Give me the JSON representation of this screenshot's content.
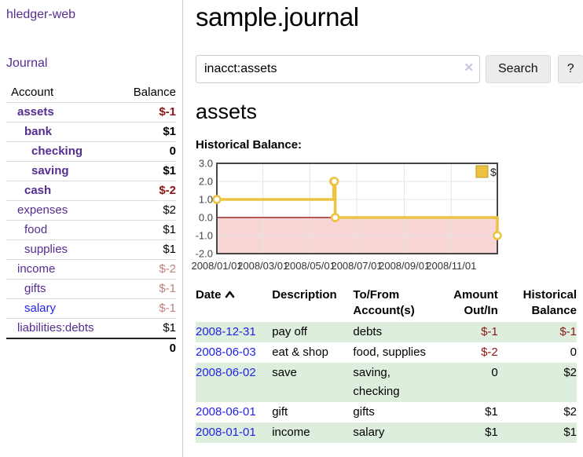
{
  "sidebar": {
    "app_title": "hledger-web",
    "nav_journal": "Journal",
    "table": {
      "headers": {
        "account": "Account",
        "balance": "Balance"
      },
      "rows": [
        {
          "label": "assets",
          "depth": 1,
          "bold": true,
          "balance": "$-1",
          "balance_tone": "neg",
          "link_tone": "purple"
        },
        {
          "label": "bank",
          "depth": 2,
          "bold": true,
          "balance": "$1",
          "balance_tone": "pos",
          "link_tone": "purple"
        },
        {
          "label": "checking",
          "depth": 3,
          "bold": true,
          "balance": "0",
          "balance_tone": "pos",
          "link_tone": "purple"
        },
        {
          "label": "saving",
          "depth": 3,
          "bold": true,
          "balance": "$1",
          "balance_tone": "pos",
          "link_tone": "purple"
        },
        {
          "label": "cash",
          "depth": 2,
          "bold": true,
          "balance": "$-2",
          "balance_tone": "neg",
          "link_tone": "purple"
        },
        {
          "label": "expenses",
          "depth": 1,
          "bold": false,
          "balance": "$2",
          "balance_tone": "pos",
          "link_tone": "purple"
        },
        {
          "label": "food",
          "depth": 2,
          "bold": false,
          "balance": "$1",
          "balance_tone": "pos",
          "link_tone": "purple"
        },
        {
          "label": "supplies",
          "depth": 2,
          "bold": false,
          "balance": "$1",
          "balance_tone": "pos",
          "link_tone": "purple"
        },
        {
          "label": "income",
          "depth": 1,
          "bold": false,
          "balance": "$-2",
          "balance_tone": "negsoft",
          "link_tone": "purple"
        },
        {
          "label": "gifts",
          "depth": 2,
          "bold": false,
          "balance": "$-1",
          "balance_tone": "negsoft",
          "link_tone": "purple"
        },
        {
          "label": "salary",
          "depth": 2,
          "bold": false,
          "balance": "$-1",
          "balance_tone": "negsoft",
          "link_tone": "blue"
        },
        {
          "label": "liabilities:debts",
          "depth": 1,
          "bold": false,
          "balance": "$1",
          "balance_tone": "pos",
          "link_tone": "purple"
        }
      ],
      "total": "0"
    }
  },
  "main": {
    "title": "sample.journal",
    "search": {
      "value": "inacct:assets",
      "clear_icon": "✕",
      "search_button": "Search",
      "help_button": "?"
    },
    "account_heading": "assets",
    "chart_label": "Historical Balance:"
  },
  "chart_data": {
    "type": "line",
    "title": "Historical Balance of assets",
    "step": true,
    "series": [
      {
        "name": "$",
        "color": "#EDC240",
        "points": [
          [
            "2008-01-01",
            1
          ],
          [
            "2008-06-01",
            2
          ],
          [
            "2008-06-02",
            2
          ],
          [
            "2008-06-03",
            0
          ],
          [
            "2008-12-31",
            -1
          ]
        ]
      }
    ],
    "x_tick_labels": [
      "2008/01/01",
      "2008/03/01",
      "2008/05/01",
      "2008/07/01",
      "2008/09/01",
      "2008/11/01"
    ],
    "y_tick_labels": [
      "3.0",
      "2.0",
      "1.0",
      "0.0",
      "-1.0",
      "-2.0"
    ],
    "y_tick_values": [
      3,
      2,
      1,
      0,
      -1,
      -2
    ],
    "ylim": [
      -2,
      3
    ],
    "xlim": [
      "2008-01-01",
      "2008-12-31"
    ],
    "grid": true,
    "legend_position": "top-right",
    "legend": {
      "label": "$",
      "swatch_color": "#EDC240",
      "swatch_border": "#b89a30"
    },
    "negative_region_color": "#f9d6d6",
    "zero_line_color": "#8b0000",
    "border_color": "#474747",
    "gridline_color": "#e4e4e4",
    "marker_fill": "#ffffff"
  },
  "register": {
    "headers": {
      "date": "Date",
      "sort_icon": "chevron-up-icon",
      "description": "Description",
      "tofrom": "To/From\nAccount(s)",
      "amount": "Amount\nOut/In",
      "balance": "Historical\nBalance"
    },
    "rows": [
      {
        "date": "2008-12-31",
        "description": "pay off",
        "accounts": "debts",
        "amount": "$-1",
        "amount_tone": "neg",
        "balance": "$-1",
        "balance_tone": "neg",
        "green": true
      },
      {
        "date": "2008-06-03",
        "description": "eat & shop",
        "accounts": "food, supplies",
        "amount": "$-2",
        "amount_tone": "neg",
        "balance": "0",
        "balance_tone": "pos",
        "green": false
      },
      {
        "date": "2008-06-02",
        "description": "save",
        "accounts": "saving,\nchecking",
        "amount": "0",
        "amount_tone": "pos",
        "balance": "$2",
        "balance_tone": "pos",
        "green": true
      },
      {
        "date": "2008-06-01",
        "description": "gift",
        "accounts": "gifts",
        "amount": "$1",
        "amount_tone": "pos",
        "balance": "$2",
        "balance_tone": "pos",
        "green": false
      },
      {
        "date": "2008-01-01",
        "description": "income",
        "accounts": "salary",
        "amount": "$1",
        "amount_tone": "pos",
        "balance": "$1",
        "balance_tone": "pos",
        "green": true
      }
    ]
  },
  "colors": {
    "purple_link": "#552d90",
    "blue_link": "#2222ee",
    "negative_strong": "#8e1515",
    "negative_soft": "#bf8080",
    "row_green": "#ddeedd",
    "chart_line": "#EDC240",
    "negative_region": "#f9d6d6",
    "zero_line": "#8b0000"
  }
}
